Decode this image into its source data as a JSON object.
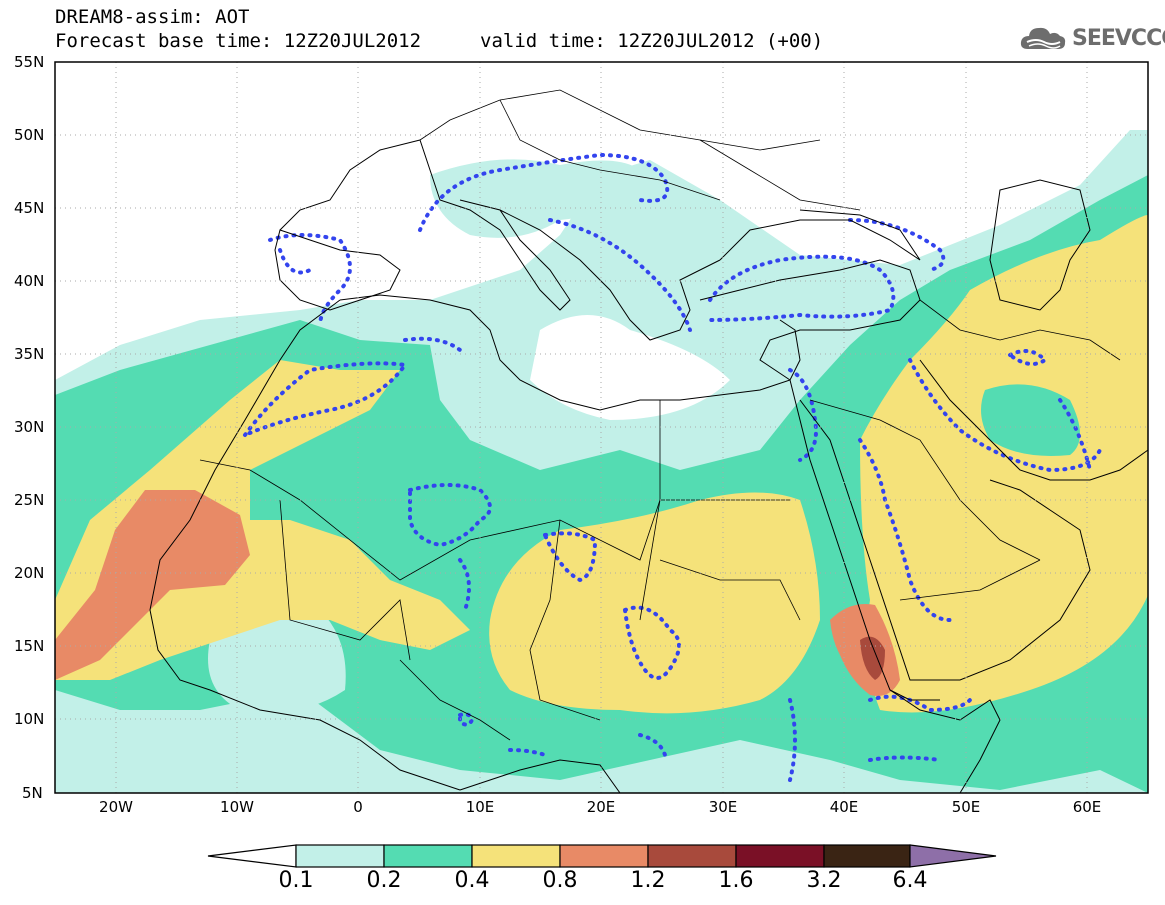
{
  "header": {
    "title_line1": "DREAM8-assim: AOT",
    "title_line2": "Forecast base time: 12Z20JUL2012",
    "valid_time": "valid time: 12Z20JUL2012 (+00)",
    "logo_text": "SEEVCCC",
    "logo_icon": "cloud-icon"
  },
  "map": {
    "lon_range": [
      -25,
      65
    ],
    "lat_range": [
      5,
      55
    ],
    "lat_labels": [
      "55N",
      "50N",
      "45N",
      "40N",
      "35N",
      "30N",
      "25N",
      "20N",
      "15N",
      "10N",
      "5N"
    ],
    "lon_labels": [
      "20W",
      "10W",
      "0",
      "10E",
      "20E",
      "30E",
      "40E",
      "50E",
      "60E"
    ]
  },
  "colorbar": {
    "labels": [
      "0.1",
      "0.2",
      "0.4",
      "0.8",
      "1.2",
      "1.6",
      "3.2",
      "6.4"
    ],
    "colors": [
      "#c2f0e8",
      "#54dcb2",
      "#f5e27a",
      "#e88a66",
      "#a84a3c",
      "#7a1026",
      "#3a2414",
      "#8e6fa8"
    ]
  },
  "colors": {
    "level1": "#c2f0e8",
    "level2": "#54dcb2",
    "level3": "#f5e27a",
    "level4": "#e88a66",
    "level5": "#a84a3c",
    "dust_contour": "#3344ee"
  }
}
